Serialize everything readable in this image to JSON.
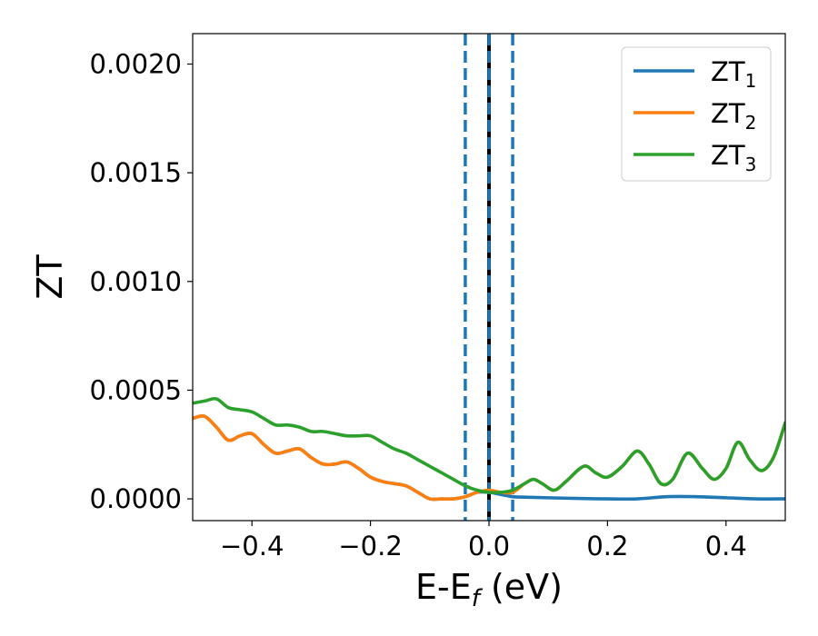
{
  "chart_data": {
    "type": "line",
    "xlabel": "E-E",
    "xlabel_sub": "f",
    "xlabel_unit": " (eV)",
    "ylabel": "ZT",
    "xlim": [
      -0.5,
      0.5
    ],
    "ylim": [
      -0.0001,
      0.00214
    ],
    "xticks": [
      -0.4,
      -0.2,
      0.0,
      0.2,
      0.4
    ],
    "xtick_labels": [
      "−0.4",
      "−0.2",
      "0.0",
      "0.2",
      "0.4"
    ],
    "yticks": [
      0.0,
      0.0005,
      0.001,
      0.0015,
      0.002
    ],
    "ytick_labels": [
      "0.0000",
      "0.0005",
      "0.0010",
      "0.0015",
      "0.0020"
    ],
    "grid": false,
    "legend_position": "top-right",
    "vlines": [
      {
        "x": -0.04,
        "style": "dashed",
        "color": "#1f77b4"
      },
      {
        "x": 0.04,
        "style": "dashed",
        "color": "#1f77b4"
      },
      {
        "x": 0.0,
        "style": "solid",
        "color": "#000000"
      },
      {
        "x": 0.0,
        "style": "dashed",
        "color": "#1f77b4"
      }
    ],
    "series": [
      {
        "name": "ZT",
        "sub": "1",
        "color": "#1f77b4",
        "points": [
          [
            -0.5,
            0.00037
          ],
          [
            -0.48,
            0.00038
          ],
          [
            -0.46,
            0.00033
          ],
          [
            -0.44,
            0.00027
          ],
          [
            -0.42,
            0.00029
          ],
          [
            -0.4,
            0.0003
          ],
          [
            -0.38,
            0.00025
          ],
          [
            -0.36,
            0.00021
          ],
          [
            -0.34,
            0.00022
          ],
          [
            -0.32,
            0.00023
          ],
          [
            -0.3,
            0.00019
          ],
          [
            -0.28,
            0.00016
          ],
          [
            -0.26,
            0.00016
          ],
          [
            -0.24,
            0.00017
          ],
          [
            -0.22,
            0.00014
          ],
          [
            -0.2,
            0.0001
          ],
          [
            -0.18,
            8e-05
          ],
          [
            -0.16,
            7e-05
          ],
          [
            -0.14,
            6e-05
          ],
          [
            -0.12,
            3e-05
          ],
          [
            -0.1,
            0.0
          ],
          [
            -0.08,
            0.0
          ],
          [
            -0.06,
            0.0
          ],
          [
            -0.04,
            1e-05
          ],
          [
            -0.02,
            3e-05
          ],
          [
            0.0,
            3e-05
          ],
          [
            0.02,
            2e-05
          ],
          [
            0.04,
            1e-05
          ],
          [
            0.06,
            8e-06
          ],
          [
            0.1,
            5e-06
          ],
          [
            0.15,
            2e-06
          ],
          [
            0.2,
            0.0
          ],
          [
            0.25,
            0.0
          ],
          [
            0.3,
            1e-05
          ],
          [
            0.35,
            1e-05
          ],
          [
            0.4,
            5e-06
          ],
          [
            0.45,
            0.0
          ],
          [
            0.5,
            0.0
          ]
        ]
      },
      {
        "name": "ZT",
        "sub": "2",
        "color": "#ff7f0e",
        "points": [
          [
            -0.5,
            0.00037
          ],
          [
            -0.48,
            0.00038
          ],
          [
            -0.46,
            0.00033
          ],
          [
            -0.44,
            0.00027
          ],
          [
            -0.42,
            0.00029
          ],
          [
            -0.4,
            0.0003
          ],
          [
            -0.38,
            0.00025
          ],
          [
            -0.36,
            0.00021
          ],
          [
            -0.34,
            0.00022
          ],
          [
            -0.32,
            0.00023
          ],
          [
            -0.3,
            0.00019
          ],
          [
            -0.28,
            0.00016
          ],
          [
            -0.26,
            0.00016
          ],
          [
            -0.24,
            0.00017
          ],
          [
            -0.22,
            0.00014
          ],
          [
            -0.2,
            0.0001
          ],
          [
            -0.18,
            8e-05
          ],
          [
            -0.16,
            7e-05
          ],
          [
            -0.14,
            6e-05
          ],
          [
            -0.12,
            3e-05
          ],
          [
            -0.1,
            0.0
          ],
          [
            -0.08,
            0.0
          ],
          [
            -0.06,
            0.0
          ],
          [
            -0.04,
            1e-05
          ],
          [
            -0.02,
            3e-05
          ],
          [
            0.0,
            4e-05
          ],
          [
            0.02,
            3e-05
          ],
          [
            0.04,
            3e-05
          ],
          [
            0.06,
            7e-05
          ],
          [
            0.075,
            9e-05
          ],
          [
            0.09,
            7e-05
          ],
          [
            0.11,
            4e-05
          ],
          [
            0.13,
            8e-05
          ],
          [
            0.16,
            0.00015
          ],
          [
            0.18,
            0.00012
          ],
          [
            0.2,
            0.0001
          ],
          [
            0.225,
            0.00015
          ],
          [
            0.25,
            0.00022
          ],
          [
            0.27,
            0.00016
          ],
          [
            0.29,
            7e-05
          ],
          [
            0.31,
            9e-05
          ],
          [
            0.335,
            0.00021
          ],
          [
            0.36,
            0.00014
          ],
          [
            0.38,
            9e-05
          ],
          [
            0.4,
            0.00014
          ],
          [
            0.42,
            0.00026
          ],
          [
            0.44,
            0.00018
          ],
          [
            0.46,
            0.00013
          ],
          [
            0.48,
            0.00019
          ],
          [
            0.5,
            0.00035
          ]
        ]
      },
      {
        "name": "ZT",
        "sub": "3",
        "color": "#2ca02c",
        "points": [
          [
            -0.5,
            0.00044
          ],
          [
            -0.48,
            0.00045
          ],
          [
            -0.46,
            0.00046
          ],
          [
            -0.44,
            0.00042
          ],
          [
            -0.42,
            0.00041
          ],
          [
            -0.4,
            0.0004
          ],
          [
            -0.38,
            0.00037
          ],
          [
            -0.36,
            0.00034
          ],
          [
            -0.34,
            0.00034
          ],
          [
            -0.32,
            0.00033
          ],
          [
            -0.3,
            0.00031
          ],
          [
            -0.28,
            0.00031
          ],
          [
            -0.26,
            0.0003
          ],
          [
            -0.24,
            0.00029
          ],
          [
            -0.22,
            0.00029
          ],
          [
            -0.2,
            0.00029
          ],
          [
            -0.18,
            0.00026
          ],
          [
            -0.16,
            0.00023
          ],
          [
            -0.14,
            0.00021
          ],
          [
            -0.12,
            0.00018
          ],
          [
            -0.1,
            0.00015
          ],
          [
            -0.08,
            0.00012
          ],
          [
            -0.06,
            9e-05
          ],
          [
            -0.04,
            6e-05
          ],
          [
            -0.02,
            4e-05
          ],
          [
            0.0,
            3e-05
          ],
          [
            0.02,
            3e-05
          ],
          [
            0.04,
            4e-05
          ],
          [
            0.06,
            7e-05
          ],
          [
            0.075,
            9e-05
          ],
          [
            0.09,
            7e-05
          ],
          [
            0.11,
            4e-05
          ],
          [
            0.13,
            8e-05
          ],
          [
            0.16,
            0.00015
          ],
          [
            0.18,
            0.00012
          ],
          [
            0.2,
            0.0001
          ],
          [
            0.225,
            0.00015
          ],
          [
            0.25,
            0.00022
          ],
          [
            0.27,
            0.00016
          ],
          [
            0.29,
            7e-05
          ],
          [
            0.31,
            9e-05
          ],
          [
            0.335,
            0.00021
          ],
          [
            0.36,
            0.00014
          ],
          [
            0.38,
            9e-05
          ],
          [
            0.4,
            0.00014
          ],
          [
            0.42,
            0.00026
          ],
          [
            0.44,
            0.00018
          ],
          [
            0.46,
            0.00013
          ],
          [
            0.48,
            0.00019
          ],
          [
            0.5,
            0.00035
          ]
        ]
      }
    ]
  }
}
